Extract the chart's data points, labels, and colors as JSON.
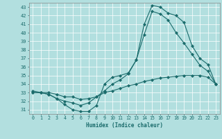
{
  "xlabel": "Humidex (Indice chaleur)",
  "ylabel": "",
  "bg_color": "#b2dfdf",
  "line_color": "#1a6b6b",
  "grid_color": "#ffffff",
  "ylim": [
    30.5,
    43.5
  ],
  "xlim": [
    -0.5,
    23.5
  ],
  "yticks": [
    31,
    32,
    33,
    34,
    35,
    36,
    37,
    38,
    39,
    40,
    41,
    42,
    43
  ],
  "xticks": [
    0,
    1,
    2,
    3,
    4,
    5,
    6,
    7,
    8,
    9,
    10,
    11,
    12,
    13,
    14,
    15,
    16,
    17,
    18,
    19,
    20,
    21,
    22,
    23
  ],
  "line1_x": [
    0,
    1,
    2,
    3,
    4,
    5,
    6,
    7,
    8,
    9,
    10,
    11,
    12,
    13,
    14,
    15,
    16,
    17,
    18,
    19,
    20,
    21,
    22,
    23
  ],
  "line1_y": [
    33.0,
    33.0,
    32.8,
    32.3,
    31.6,
    31.0,
    30.8,
    30.8,
    31.5,
    34.0,
    34.8,
    35.0,
    35.3,
    36.8,
    41.0,
    43.2,
    43.0,
    42.3,
    42.0,
    41.2,
    38.5,
    37.0,
    36.3,
    34.0
  ],
  "line2_x": [
    0,
    1,
    2,
    3,
    4,
    5,
    6,
    7,
    8,
    9,
    10,
    11,
    12,
    13,
    14,
    15,
    16,
    17,
    18,
    19,
    20,
    21,
    22,
    23
  ],
  "line2_y": [
    33.2,
    33.0,
    32.8,
    32.3,
    32.0,
    31.8,
    31.5,
    31.8,
    32.5,
    33.2,
    34.0,
    34.5,
    35.2,
    36.8,
    39.8,
    42.5,
    42.2,
    41.5,
    40.0,
    38.8,
    37.5,
    36.2,
    35.5,
    34.0
  ],
  "line3_x": [
    0,
    1,
    2,
    3,
    4,
    5,
    6,
    7,
    8,
    9,
    10,
    11,
    12,
    13,
    14,
    15,
    16,
    17,
    18,
    19,
    20,
    21,
    22,
    23
  ],
  "line3_y": [
    33.0,
    33.0,
    33.0,
    32.8,
    32.5,
    32.5,
    32.2,
    32.3,
    32.5,
    33.0,
    33.2,
    33.5,
    33.8,
    34.0,
    34.3,
    34.5,
    34.7,
    34.8,
    34.9,
    35.0,
    35.0,
    35.0,
    34.8,
    34.0
  ]
}
